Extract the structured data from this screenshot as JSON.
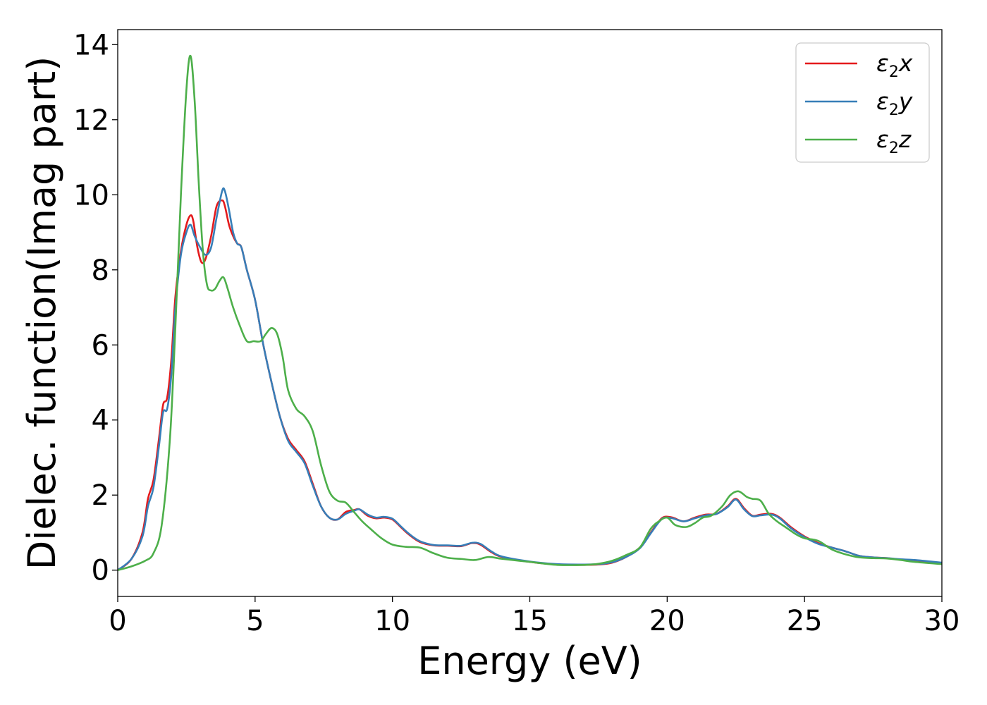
{
  "chart_data": {
    "type": "line",
    "xlabel": "Energy (eV)",
    "ylabel": "Dielec. function(Imag part)",
    "xlim": [
      0,
      30
    ],
    "ylim": [
      -0.7,
      14.4
    ],
    "xticks": [
      0,
      5,
      10,
      15,
      20,
      25,
      30
    ],
    "yticks": [
      0,
      2,
      4,
      6,
      8,
      10,
      12,
      14
    ],
    "xtick_labels": [
      "0",
      "5",
      "10",
      "15",
      "20",
      "25",
      "30"
    ],
    "ytick_labels": [
      "0",
      "2",
      "4",
      "6",
      "8",
      "10",
      "12",
      "14"
    ],
    "grid": false,
    "legend_position": "top-right",
    "series": [
      {
        "name": "ε2x",
        "legend": {
          "base": "ε",
          "sub": "2",
          "var": "x"
        },
        "color": "#e41a1c",
        "x": [
          0,
          0.5,
          0.9,
          1.1,
          1.3,
          1.5,
          1.65,
          1.8,
          1.95,
          2.1,
          2.3,
          2.5,
          2.65,
          2.75,
          2.9,
          3.05,
          3.2,
          3.4,
          3.6,
          3.8,
          3.9,
          4.05,
          4.2,
          4.35,
          4.5,
          4.7,
          5.0,
          5.3,
          5.6,
          5.9,
          6.2,
          6.5,
          6.8,
          7.1,
          7.4,
          7.7,
          8.0,
          8.3,
          8.6,
          8.8,
          9.1,
          9.4,
          9.7,
          10.0,
          10.3,
          10.6,
          11.0,
          11.5,
          12.0,
          12.5,
          12.9,
          13.2,
          13.6,
          14.0,
          15,
          16,
          17,
          17.5,
          18,
          18.5,
          19,
          19.4,
          19.7,
          19.9,
          20.2,
          20.6,
          21.0,
          21.4,
          21.8,
          22.2,
          22.5,
          22.8,
          23.1,
          23.4,
          23.8,
          24.1,
          24.5,
          25.0,
          25.5,
          26.0,
          26.5,
          27.0,
          27.5,
          28.0,
          28.5,
          29.0,
          30.0
        ],
        "values": [
          0,
          0.3,
          1.0,
          1.9,
          2.4,
          3.5,
          4.4,
          4.6,
          5.6,
          7.3,
          8.5,
          9.2,
          9.45,
          9.3,
          8.6,
          8.2,
          8.3,
          8.9,
          9.7,
          9.85,
          9.7,
          9.2,
          8.9,
          8.7,
          8.6,
          8.0,
          7.2,
          6.0,
          5.0,
          4.1,
          3.5,
          3.2,
          2.9,
          2.3,
          1.7,
          1.4,
          1.35,
          1.55,
          1.6,
          1.62,
          1.45,
          1.38,
          1.4,
          1.35,
          1.15,
          0.95,
          0.75,
          0.66,
          0.65,
          0.64,
          0.72,
          0.68,
          0.48,
          0.35,
          0.22,
          0.15,
          0.14,
          0.15,
          0.2,
          0.35,
          0.6,
          1.0,
          1.3,
          1.42,
          1.4,
          1.3,
          1.4,
          1.48,
          1.5,
          1.7,
          1.9,
          1.65,
          1.45,
          1.48,
          1.5,
          1.4,
          1.15,
          0.9,
          0.72,
          0.6,
          0.5,
          0.38,
          0.34,
          0.32,
          0.28,
          0.25,
          0.19
        ]
      },
      {
        "name": "ε2y",
        "legend": {
          "base": "ε",
          "sub": "2",
          "var": "y"
        },
        "color": "#377eb8",
        "x": [
          0,
          0.5,
          0.9,
          1.1,
          1.3,
          1.5,
          1.65,
          1.8,
          1.95,
          2.1,
          2.3,
          2.5,
          2.65,
          2.8,
          3.0,
          3.2,
          3.4,
          3.6,
          3.8,
          3.9,
          4.05,
          4.2,
          4.35,
          4.5,
          4.7,
          5.0,
          5.3,
          5.6,
          5.9,
          6.2,
          6.5,
          6.8,
          7.1,
          7.4,
          7.7,
          8.0,
          8.3,
          8.6,
          8.8,
          9.1,
          9.4,
          9.7,
          10.0,
          10.3,
          10.6,
          11.0,
          11.5,
          12.0,
          12.5,
          12.9,
          13.2,
          13.6,
          14.0,
          15,
          16,
          17,
          17.5,
          18,
          18.5,
          19,
          19.4,
          19.7,
          19.9,
          20.2,
          20.6,
          21.0,
          21.4,
          21.8,
          22.2,
          22.5,
          22.8,
          23.1,
          23.4,
          23.8,
          24.1,
          24.5,
          25.0,
          25.5,
          26.0,
          26.5,
          27.0,
          27.5,
          28.0,
          28.5,
          29.0,
          30.0
        ],
        "values": [
          0,
          0.3,
          0.9,
          1.7,
          2.2,
          3.3,
          4.2,
          4.3,
          5.2,
          7.0,
          8.4,
          9.0,
          9.2,
          8.9,
          8.6,
          8.4,
          8.6,
          9.4,
          10.1,
          10.1,
          9.6,
          9.0,
          8.7,
          8.6,
          8.0,
          7.2,
          6.0,
          5.0,
          4.1,
          3.45,
          3.15,
          2.85,
          2.25,
          1.7,
          1.4,
          1.35,
          1.5,
          1.58,
          1.62,
          1.48,
          1.4,
          1.42,
          1.37,
          1.17,
          0.97,
          0.77,
          0.67,
          0.66,
          0.65,
          0.73,
          0.7,
          0.5,
          0.36,
          0.23,
          0.16,
          0.15,
          0.16,
          0.21,
          0.35,
          0.58,
          0.98,
          1.28,
          1.4,
          1.38,
          1.3,
          1.38,
          1.46,
          1.5,
          1.68,
          1.88,
          1.62,
          1.44,
          1.46,
          1.48,
          1.38,
          1.12,
          0.88,
          0.7,
          0.6,
          0.5,
          0.38,
          0.34,
          0.32,
          0.29,
          0.27,
          0.2
        ]
      },
      {
        "name": "ε2z",
        "legend": {
          "base": "ε",
          "sub": "2",
          "var": "z"
        },
        "color": "#4daf4a",
        "x": [
          0,
          0.5,
          1.0,
          1.3,
          1.6,
          1.9,
          2.1,
          2.3,
          2.5,
          2.65,
          2.8,
          2.95,
          3.1,
          3.25,
          3.4,
          3.55,
          3.7,
          3.85,
          4.0,
          4.2,
          4.45,
          4.7,
          4.95,
          5.2,
          5.4,
          5.6,
          5.8,
          6.0,
          6.2,
          6.5,
          6.8,
          7.1,
          7.4,
          7.7,
          8.0,
          8.3,
          8.6,
          8.9,
          9.2,
          9.6,
          10.0,
          10.5,
          11.0,
          11.5,
          12.0,
          12.5,
          13.0,
          13.5,
          14.0,
          15.0,
          16.0,
          17.0,
          17.5,
          18.0,
          18.5,
          19.0,
          19.4,
          19.7,
          20.0,
          20.3,
          20.7,
          21.0,
          21.3,
          21.6,
          22.0,
          22.3,
          22.6,
          22.9,
          23.1,
          23.4,
          23.7,
          24.0,
          24.3,
          24.7,
          25.0,
          25.5,
          26.0,
          26.5,
          27.0,
          27.5,
          28.0,
          28.5,
          29.0,
          30.0
        ],
        "values": [
          0,
          0.1,
          0.25,
          0.45,
          1.2,
          3.5,
          6.5,
          10.0,
          12.8,
          13.7,
          12.5,
          10.3,
          8.5,
          7.6,
          7.45,
          7.5,
          7.7,
          7.8,
          7.5,
          7.0,
          6.5,
          6.1,
          6.1,
          6.1,
          6.3,
          6.45,
          6.3,
          5.7,
          4.8,
          4.3,
          4.1,
          3.7,
          2.8,
          2.1,
          1.85,
          1.8,
          1.55,
          1.3,
          1.1,
          0.85,
          0.68,
          0.62,
          0.6,
          0.45,
          0.33,
          0.3,
          0.27,
          0.35,
          0.3,
          0.22,
          0.14,
          0.14,
          0.17,
          0.25,
          0.4,
          0.6,
          1.1,
          1.3,
          1.4,
          1.2,
          1.15,
          1.25,
          1.4,
          1.45,
          1.7,
          2.0,
          2.1,
          1.95,
          1.9,
          1.85,
          1.5,
          1.3,
          1.15,
          0.95,
          0.85,
          0.78,
          0.55,
          0.42,
          0.34,
          0.32,
          0.31,
          0.27,
          0.22,
          0.16
        ]
      }
    ]
  }
}
